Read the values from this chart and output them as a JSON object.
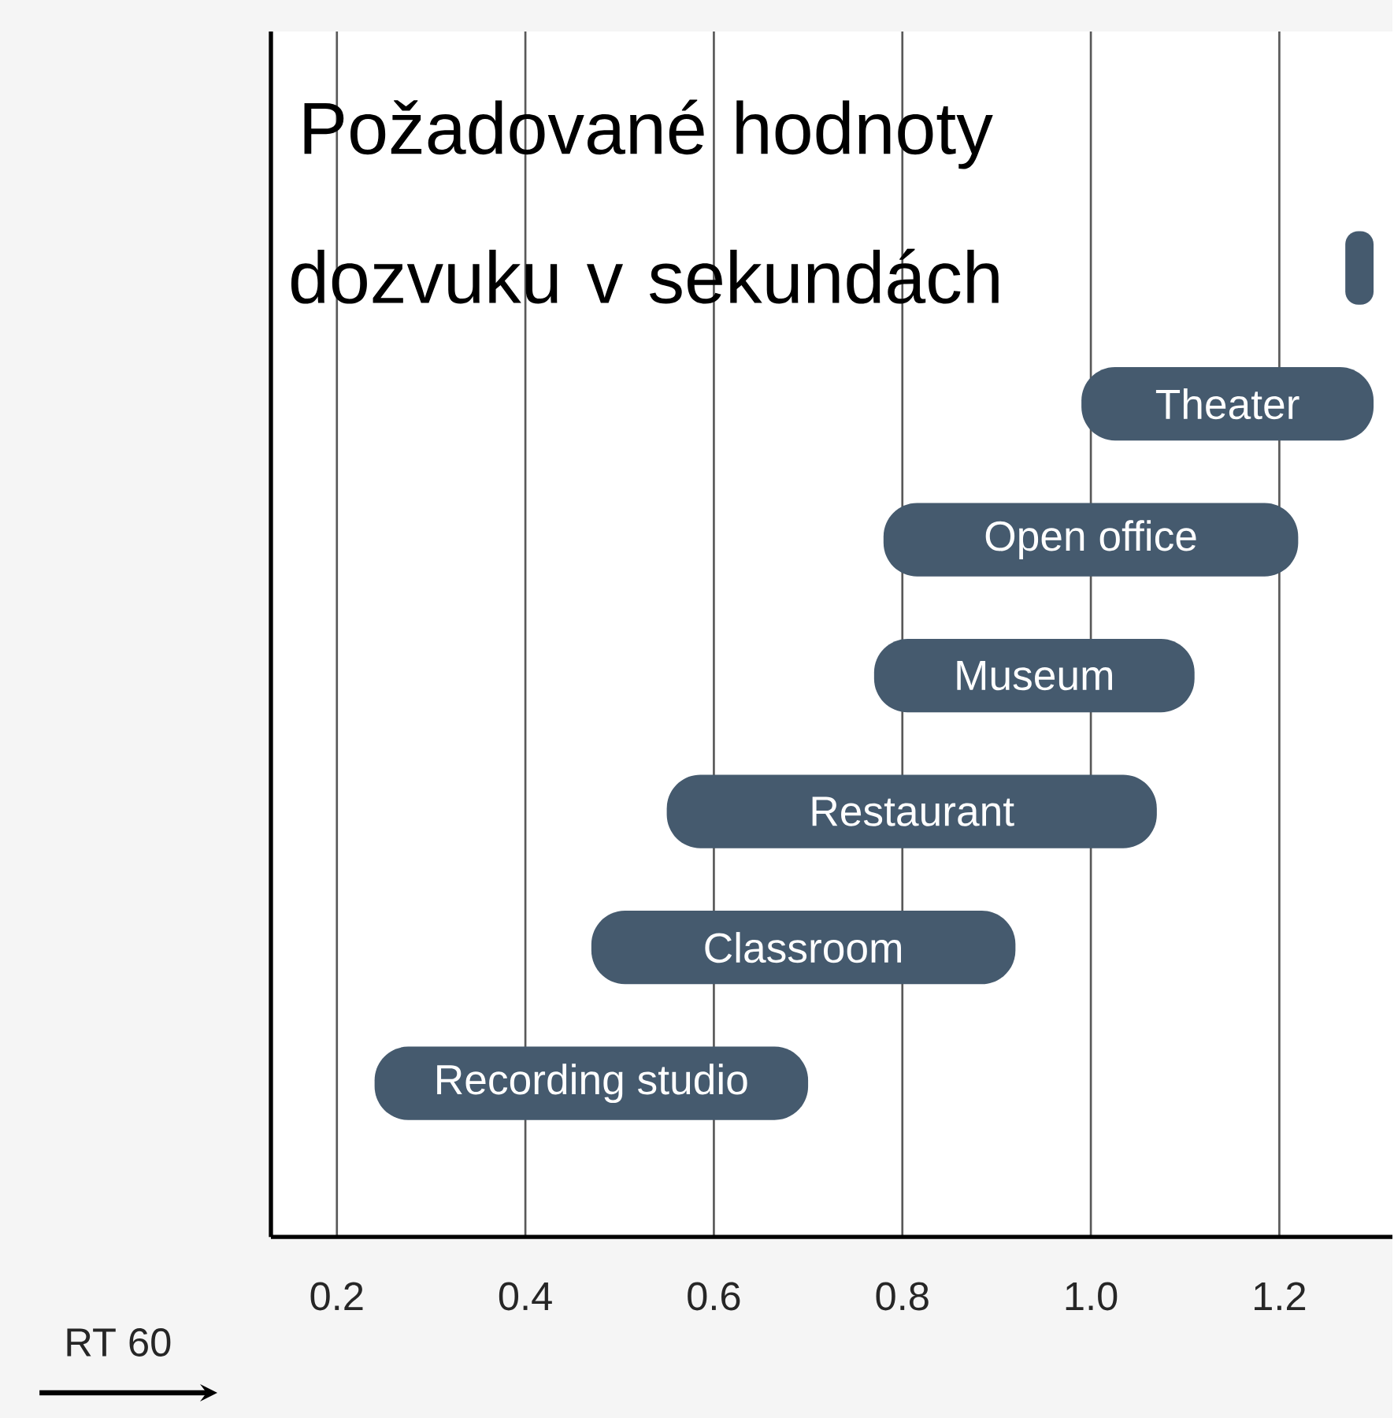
{
  "chart_data": {
    "type": "bar",
    "orientation": "horizontal",
    "title": "Požadované hodnoty dozvuku v sekundách",
    "xlabel": "RT 60",
    "categories": [
      null,
      "Theater",
      "Open office",
      "Museum",
      "Restaurant",
      "Classroom",
      "Recording studio"
    ],
    "base": [
      1.27,
      0.99,
      0.78,
      0.77,
      0.55,
      0.47,
      0.24
    ],
    "values": [
      0.03,
      0.31,
      0.44,
      0.34,
      0.52,
      0.45,
      0.46
    ],
    "color": "#455a6e",
    "xlim": [
      0.13,
      1.32
    ],
    "xticks": [
      0.2,
      0.4,
      0.6,
      0.8,
      {
        "value": 1.0,
        "label": "1.0"
      },
      1.2
    ],
    "grid": "x"
  }
}
